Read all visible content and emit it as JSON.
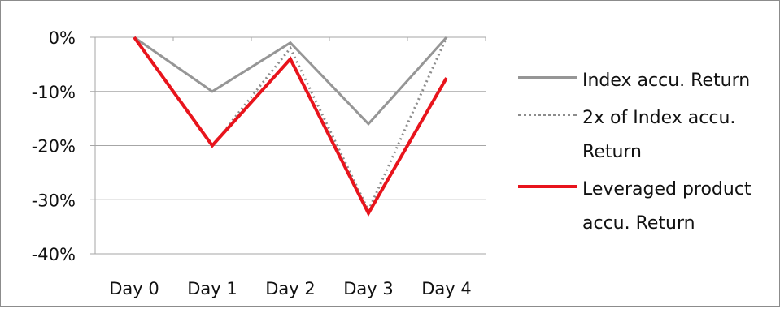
{
  "chart_data": {
    "type": "line",
    "categories": [
      "Day 0",
      "Day 1",
      "Day 2",
      "Day 3",
      "Day 4"
    ],
    "series": [
      {
        "name": "Index accu. Return",
        "values": [
          0,
          -10,
          -1,
          -16,
          0
        ],
        "color": "#969696",
        "style": "solid"
      },
      {
        "name": "2x of Index accu. Return",
        "values": [
          0,
          -20,
          -2,
          -32,
          0
        ],
        "color": "#8c8c8c",
        "style": "dotted"
      },
      {
        "name": "Leveraged product accu. Return",
        "values": [
          0,
          -20,
          -4,
          -32.5,
          -7.5
        ],
        "color": "#e8141c",
        "style": "solid"
      }
    ],
    "y_ticks": [
      "0%",
      "-10%",
      "-20%",
      "-30%",
      "-40%"
    ],
    "y_tick_values": [
      0,
      -10,
      -20,
      -30,
      -40
    ],
    "ylim": [
      -40,
      0
    ],
    "grid": true,
    "legend_position": "right"
  }
}
